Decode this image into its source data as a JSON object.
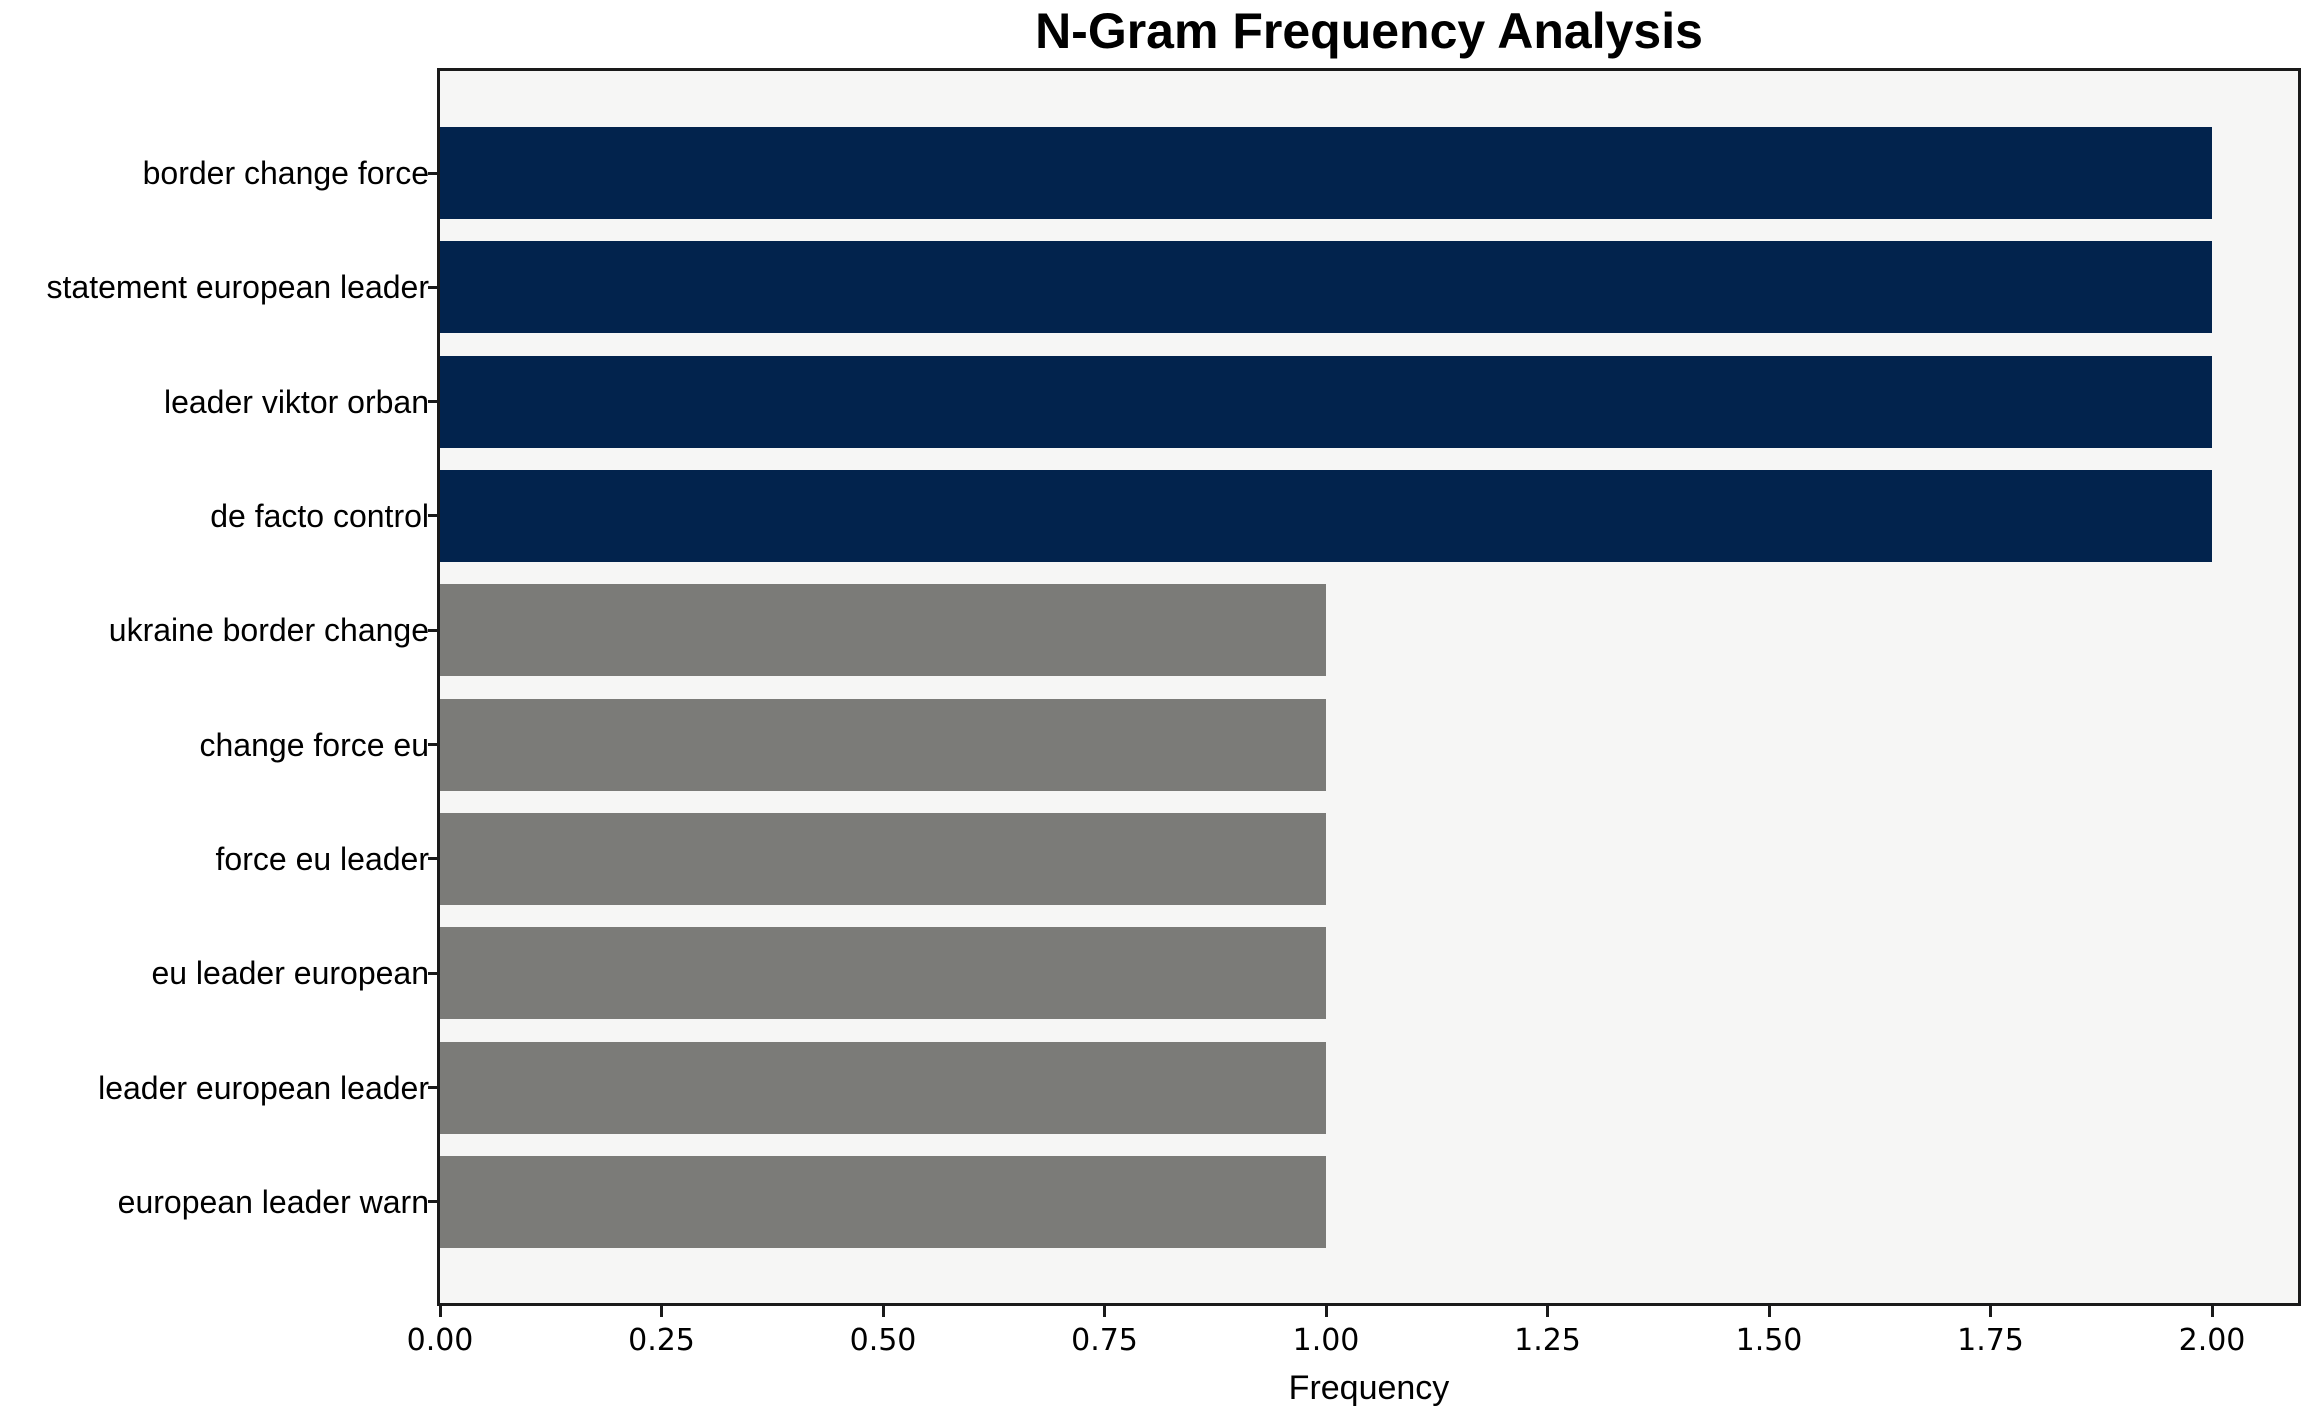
{
  "chart_data": {
    "type": "bar",
    "orientation": "horizontal",
    "title": "N-Gram Frequency Analysis",
    "xlabel": "Frequency",
    "ylabel": "",
    "categories": [
      "border change force",
      "statement european leader",
      "leader viktor orban",
      "de facto control",
      "ukraine border change",
      "change force eu",
      "force eu leader",
      "eu leader european",
      "leader european leader",
      "european leader warn"
    ],
    "values": [
      2,
      2,
      2,
      2,
      1,
      1,
      1,
      1,
      1,
      1
    ],
    "bar_colors": [
      "#02234d",
      "#02234d",
      "#02234d",
      "#02234d",
      "#7b7b78",
      "#7b7b78",
      "#7b7b78",
      "#7b7b78",
      "#7b7b78",
      "#7b7b78"
    ],
    "xlim": [
      0,
      2.1
    ],
    "x_ticks": [
      {
        "value": 0.0,
        "label": "0.00"
      },
      {
        "value": 0.25,
        "label": "0.25"
      },
      {
        "value": 0.5,
        "label": "0.50"
      },
      {
        "value": 0.75,
        "label": "0.75"
      },
      {
        "value": 1.0,
        "label": "1.00"
      },
      {
        "value": 1.25,
        "label": "1.25"
      },
      {
        "value": 1.5,
        "label": "1.50"
      },
      {
        "value": 1.75,
        "label": "1.75"
      },
      {
        "value": 2.0,
        "label": "2.00"
      }
    ],
    "grid": false,
    "legend": null,
    "colors": {
      "high_frequency_bar": "#02234d",
      "low_frequency_bar": "#7b7b78",
      "plot_background": "#f6f6f5",
      "figure_background": "#ffffff",
      "axis_frame": "#1a1a1a",
      "text": "#000000"
    }
  }
}
